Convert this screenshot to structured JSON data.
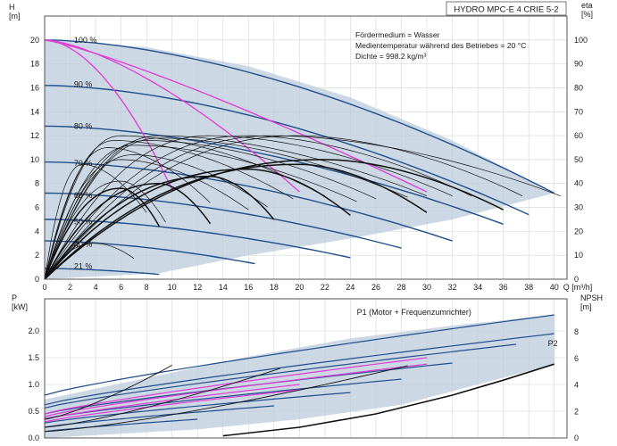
{
  "header": {
    "title": "HYDRO MPC-E 4 CRIE 5-2"
  },
  "info_lines": [
    "Fördermedium = Wasser",
    "Medientemperatur während des Betriebes = 20 °C",
    "Dichte = 998.2 kg/m³"
  ],
  "colors": {
    "curve_blue": "#1f4e8c",
    "curve_black": "#111111",
    "curve_magenta": "#e23ad6",
    "envelope_fill": "#bccbdc",
    "grid": "#d4d4d4"
  },
  "chart_data": [
    {
      "type": "line",
      "id": "head",
      "xlabel": "Q [m³/h]",
      "ylabel_left": "H\n[m]",
      "ylabel_right": "eta\n[%]",
      "xlim": [
        0,
        41
      ],
      "ylim": [
        0,
        22
      ],
      "ylim_right": [
        0,
        110
      ],
      "xticks": [
        0,
        2,
        4,
        6,
        8,
        10,
        12,
        14,
        16,
        18,
        20,
        22,
        24,
        26,
        28,
        30,
        32,
        34,
        36,
        38,
        40
      ],
      "yticks": [
        0,
        2,
        4,
        6,
        8,
        10,
        12,
        14,
        16,
        18,
        20
      ],
      "yticks_right": [
        0,
        10,
        20,
        30,
        40,
        50,
        60,
        70,
        80,
        90,
        100
      ],
      "grid": true,
      "speed_labels": [
        {
          "text": "100 %",
          "x": 2.3,
          "y": 20.0
        },
        {
          "text": "90 %",
          "x": 2.3,
          "y": 16.3
        },
        {
          "text": "80 %",
          "x": 2.3,
          "y": 12.8
        },
        {
          "text": "70 %",
          "x": 2.3,
          "y": 9.7
        },
        {
          "text": "60 %",
          "x": 2.3,
          "y": 7.0
        },
        {
          "text": "50 %",
          "x": 2.3,
          "y": 4.8
        },
        {
          "text": "40 %",
          "x": 2.3,
          "y": 2.9
        },
        {
          "text": "21 %",
          "x": 2.3,
          "y": 1.1
        }
      ],
      "series_head": [
        {
          "speed": 100,
          "h0": 20.0,
          "qmax": 40.0,
          "hend": 7.2
        },
        {
          "speed": 90,
          "h0": 16.2,
          "qmax": 38.0,
          "hend": 5.4
        },
        {
          "speed": 80,
          "h0": 12.8,
          "qmax": 36.0,
          "hend": 4.6
        },
        {
          "speed": 70,
          "h0": 9.8,
          "qmax": 32.0,
          "hend": 3.2
        },
        {
          "speed": 60,
          "h0": 7.2,
          "qmax": 28.0,
          "hend": 2.6
        },
        {
          "speed": 50,
          "h0": 5.0,
          "qmax": 24.0,
          "hend": 1.8
        },
        {
          "speed": 40,
          "h0": 3.2,
          "qmax": 16.5,
          "hend": 1.3
        },
        {
          "speed": 21,
          "h0": 0.9,
          "qmax": 9.0,
          "hend": 0.4
        }
      ],
      "envelope": {
        "upper": [
          [
            0,
            20.0
          ],
          [
            8,
            19.4
          ],
          [
            16,
            17.8
          ],
          [
            24,
            15.2
          ],
          [
            32,
            11.6
          ],
          [
            40,
            7.2
          ]
        ],
        "lower": [
          [
            40,
            7.2
          ],
          [
            32,
            5.0
          ],
          [
            24,
            3.4
          ],
          [
            16,
            2.0
          ],
          [
            9,
            0.5
          ],
          [
            0,
            0
          ]
        ]
      },
      "eta_curves": [
        {
          "qmax": 40.5,
          "peak_q": 18,
          "peak": 60
        },
        {
          "qmax": 37.5,
          "peak_q": 20,
          "peak": 60
        },
        {
          "qmax": 33.5,
          "peak_q": 16,
          "peak": 60
        },
        {
          "qmax": 32.0,
          "peak_q": 13,
          "peak": 60
        },
        {
          "qmax": 30.0,
          "peak_q": 9,
          "peak": 60
        },
        {
          "qmax": 28.5,
          "peak_q": 9,
          "peak": 59
        },
        {
          "qmax": 26.0,
          "peak_q": 8,
          "peak": 58
        },
        {
          "qmax": 24.5,
          "peak_q": 7,
          "peak": 56
        },
        {
          "qmax": 22.0,
          "peak_q": 6,
          "peak": 60
        },
        {
          "qmax": 19.5,
          "peak_q": 5.5,
          "peak": 58
        },
        {
          "qmax": 17.5,
          "peak_q": 7,
          "peak": 52
        },
        {
          "qmax": 16.0,
          "peak_q": 6,
          "peak": 50
        },
        {
          "qmax": 13.0,
          "peak_q": 5,
          "peak": 55
        },
        {
          "qmax": 9.5,
          "peak_q": 6,
          "peak": 41
        },
        {
          "qmax": 8.0,
          "peak_q": 3,
          "peak": 48
        },
        {
          "qmax": 7.0,
          "peak_q": 4,
          "peak": 15
        }
      ],
      "eta_bold": [
        {
          "qmax": 36.0,
          "peak_q": 22,
          "peak": 50
        },
        {
          "qmax": 30.0,
          "peak_q": 20,
          "peak": 48
        },
        {
          "qmax": 24.0,
          "peak_q": 16,
          "peak": 46
        },
        {
          "qmax": 18.0,
          "peak_q": 13,
          "peak": 43
        },
        {
          "qmax": 13.0,
          "peak_q": 9,
          "peak": 40
        },
        {
          "qmax": 9.0,
          "peak_q": 6,
          "peak": 38
        }
      ],
      "magenta_curves": [
        {
          "h0": 20.0,
          "qmax": 30.0,
          "hend": 7.3,
          "bend": 1.2
        },
        {
          "h0": 20.0,
          "qmax": 20.0,
          "hend": 7.3,
          "bend": 1.5
        },
        {
          "h0": 20.0,
          "qmax": 10.0,
          "hend": 7.5,
          "bend": 1.8
        }
      ]
    },
    {
      "type": "line",
      "id": "power",
      "xlabel": "",
      "ylabel_left": "P\n[kW]",
      "ylabel_right": "NPSH\n[m]",
      "xlim": [
        0,
        41
      ],
      "ylim": [
        0,
        2.6
      ],
      "ylim_right": [
        0,
        10.5
      ],
      "yticks": [
        0,
        0.5,
        1.0,
        1.5,
        2.0
      ],
      "ytick_labels": [
        "0.0",
        "0.5",
        "1.0",
        "1.5",
        "2.0"
      ],
      "yticks_right": [
        0,
        2,
        4,
        6,
        8
      ],
      "grid": true,
      "labels": [
        {
          "text": "P1 (Motor + Frequenzumrichter)",
          "x": 24.5,
          "y": 2.35
        },
        {
          "text": "P2",
          "x": 39.5,
          "y": 1.77
        }
      ],
      "envelope": {
        "upper": [
          [
            0,
            0.72
          ],
          [
            8,
            1.12
          ],
          [
            16,
            1.52
          ],
          [
            24,
            1.86
          ],
          [
            32,
            2.1
          ],
          [
            40,
            2.3
          ]
        ],
        "lower": [
          [
            40,
            1.38
          ],
          [
            34,
            1.0
          ],
          [
            28,
            0.62
          ],
          [
            20,
            0.35
          ],
          [
            12,
            0.16
          ],
          [
            0,
            0
          ]
        ]
      },
      "p1_curves": [
        {
          "p0": 0.8,
          "qmax": 40.0,
          "pend": 2.3
        },
        {
          "p0": 0.62,
          "qmax": 40.0,
          "pend": 1.95
        },
        {
          "p0": 0.56,
          "qmax": 37.0,
          "pend": 1.75
        },
        {
          "p0": 0.45,
          "qmax": 32.0,
          "pend": 1.4
        },
        {
          "p0": 0.36,
          "qmax": 28.0,
          "pend": 1.1
        },
        {
          "p0": 0.28,
          "qmax": 24.0,
          "pend": 0.85
        },
        {
          "p0": 0.2,
          "qmax": 18.0,
          "pend": 0.6
        },
        {
          "p0": 0.12,
          "qmax": 12.0,
          "pend": 0.35
        }
      ],
      "magenta_curves": [
        {
          "p0": 0.45,
          "qmax": 30.0,
          "pend": 1.5
        },
        {
          "p0": 0.4,
          "qmax": 30.0,
          "pend": 1.38
        },
        {
          "p0": 0.35,
          "qmax": 20.0,
          "pend": 1.0
        },
        {
          "p0": 0.3,
          "qmax": 20.0,
          "pend": 0.9
        }
      ],
      "steep_curves": [
        {
          "q0": 0,
          "p0": 0.35,
          "qmax": 10.0,
          "pend": 1.36
        },
        {
          "q0": 0,
          "p0": 0.2,
          "qmax": 18.5,
          "pend": 1.3
        },
        {
          "q0": 0,
          "p0": 0.12,
          "qmax": 28.5,
          "pend": 1.35
        }
      ],
      "npsh": [
        [
          14,
          0.04
        ],
        [
          20,
          0.2
        ],
        [
          26,
          0.45
        ],
        [
          32,
          0.8
        ],
        [
          36,
          1.08
        ],
        [
          40,
          1.38
        ]
      ]
    }
  ]
}
